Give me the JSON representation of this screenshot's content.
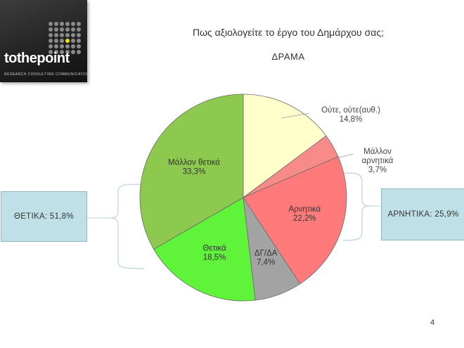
{
  "logo": {
    "to": "to",
    "the": "the",
    "point": "point",
    "tagline": "RESEARCH CONSULTING COMMUNICATION"
  },
  "title": "Πως αξιολογείτε το έργο του Δημάρχου σας;",
  "subtitle": "ΔΡΑΜΑ",
  "summary_left": "ΘΕΤΙΚΑ: 51,8%",
  "summary_right": "ΑΡΝΗΤΙΚΑ: 25,9%",
  "page_number": "4",
  "colors": {
    "positive_light": "#8dc84f",
    "positive": "#5ff33a",
    "neutral": "#ffffcc",
    "rather_negative": "#f88a8a",
    "negative": "#ff7b7b",
    "dk": "#a3a3a3",
    "bracket": "#b9d3d8"
  },
  "chart_data": {
    "type": "pie",
    "title": "Πως αξιολογείτε το έργο του Δημάρχου σας;",
    "subtitle": "ΔΡΑΜΑ",
    "slices": [
      {
        "label_lines": [
          "Ούτε, ούτε(αυθ.)"
        ],
        "value": 14.8,
        "value_label": "14,8%",
        "color": "#ffffcc",
        "label_position": "outside"
      },
      {
        "label_lines": [
          "Μάλλον",
          "αρνητικά"
        ],
        "value": 3.7,
        "value_label": "3,7%",
        "color": "#f88a8a",
        "label_position": "outside"
      },
      {
        "label_lines": [
          "Αρνητικά"
        ],
        "value": 22.2,
        "value_label": "22,2%",
        "color": "#ff7b7b",
        "label_position": "inside"
      },
      {
        "label_lines": [
          "ΔΓ/ΔΑ"
        ],
        "value": 7.4,
        "value_label": "7,4%",
        "color": "#a3a3a3",
        "label_position": "inside"
      },
      {
        "label_lines": [
          "Θετικά"
        ],
        "value": 18.5,
        "value_label": "18,5%",
        "color": "#5ff33a",
        "label_position": "inside"
      },
      {
        "label_lines": [
          "Μάλλον θετικά"
        ],
        "value": 33.3,
        "value_label": "33,3%",
        "color": "#8dc84f",
        "label_position": "inside"
      }
    ],
    "start": "top",
    "direction": "clockwise",
    "legend": "none"
  }
}
